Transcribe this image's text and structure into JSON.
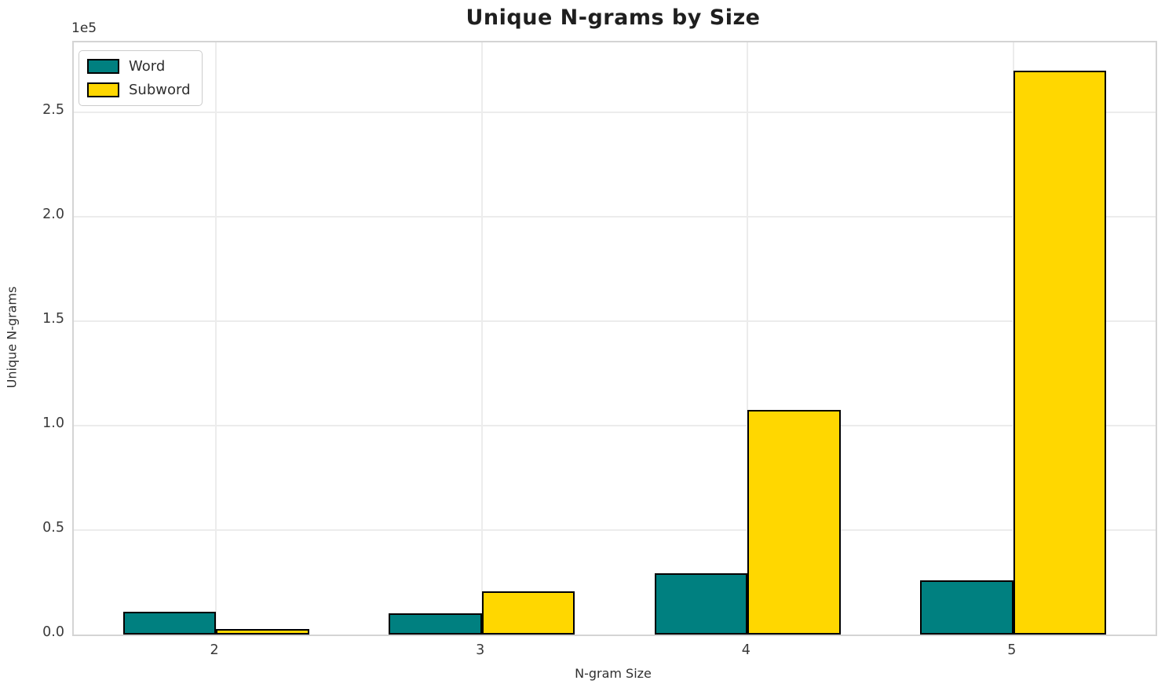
{
  "chart_data": {
    "type": "bar",
    "title": "Unique N-grams by Size",
    "xlabel": "N-gram Size",
    "ylabel": "Unique N-grams",
    "y_offset_text": "1e5",
    "categories": [
      2,
      3,
      4,
      5
    ],
    "series": [
      {
        "name": "Word",
        "color": "#008080",
        "values": [
          11000,
          10000,
          29500,
          26000
        ]
      },
      {
        "name": "Subword",
        "color": "#FFD700",
        "values": [
          2500,
          20500,
          107500,
          270000
        ]
      }
    ],
    "bar_width": 0.35,
    "bar_edge_color": "#000000",
    "xlim": [
      1.465,
      5.535
    ],
    "ylim": [
      0,
      283500
    ],
    "ytick_values": [
      0,
      50000,
      100000,
      150000,
      200000,
      250000
    ],
    "ytick_labels": [
      "0.0",
      "0.5",
      "1.0",
      "1.5",
      "2.0",
      "2.5"
    ],
    "xtick_labels": [
      "2",
      "3",
      "4",
      "5"
    ],
    "grid": true,
    "legend_position": "upper left",
    "legend_entries": [
      "Word",
      "Subword"
    ]
  },
  "colors": {
    "background": "#ffffff",
    "grid": "#ececec",
    "spine": "#d4d4d4",
    "title_text": "#1f1f1f",
    "tick_text": "#3a3a3a"
  }
}
